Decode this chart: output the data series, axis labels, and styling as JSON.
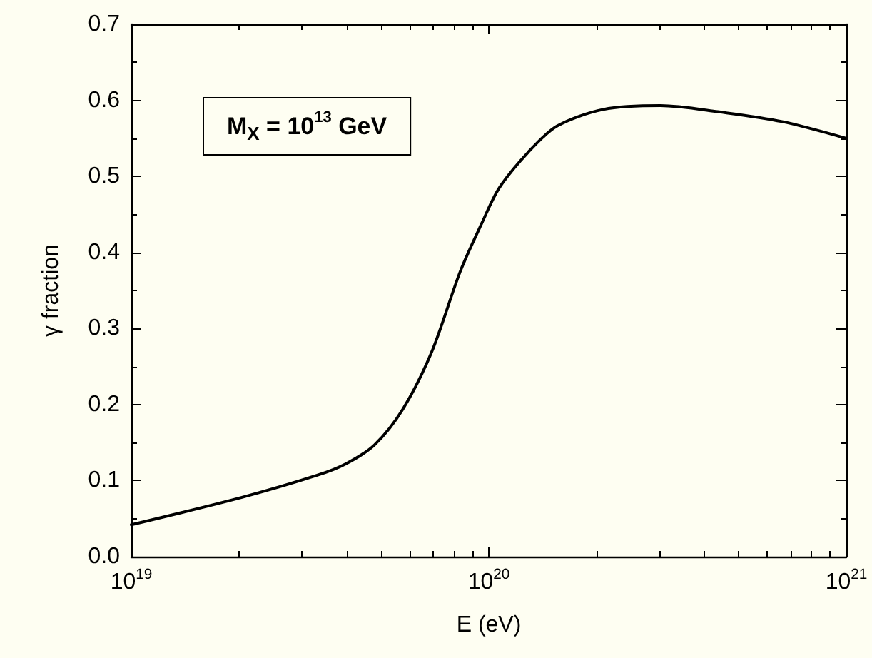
{
  "chart_data": {
    "type": "line",
    "xlabel": "E (eV)",
    "ylabel": "γ fraction",
    "annotations": [
      "M$_{X}$ = 10$^{13}$ GeV"
    ],
    "log": "x",
    "x": [
      1e+19,
      2.04e+19,
      3.31e+19,
      3.98e+19,
      4.79e+19,
      5.75e+19,
      6.92e+19,
      8.32e+19,
      9.55e+19,
      1.07e+20,
      1.29e+20,
      1.55e+20,
      2.09e+20,
      3.02e+20,
      4.37e+20,
      6.61e+20,
      1e+21
    ],
    "series": [
      {
        "color": "#000000",
        "values": [
          0.042,
          0.078,
          0.107,
          0.122,
          0.147,
          0.194,
          0.269,
          0.375,
          0.438,
          0.485,
          0.532,
          0.566,
          0.588,
          0.593,
          0.585,
          0.572,
          0.55
        ]
      }
    ],
    "xlim": [
      1e+19,
      1e+21
    ],
    "xticks": [
      {
        "value": 1e+19,
        "label": "10$^{19}$"
      },
      {
        "value": 1e+20,
        "label": "10$^{20}$"
      },
      {
        "value": 1e+21,
        "label": "10$^{21}$"
      }
    ],
    "ylim": [
      0,
      0.7
    ],
    "yticks": [
      {
        "value": 0,
        "label": "0.0"
      },
      {
        "value": 0.1,
        "label": "0.1"
      },
      {
        "value": 0.2,
        "label": "0.2"
      },
      {
        "value": 0.3,
        "label": "0.3"
      },
      {
        "value": 0.4,
        "label": "0.4"
      },
      {
        "value": 0.5,
        "label": "0.5"
      },
      {
        "value": 0.6,
        "label": "0.6"
      },
      {
        "value": 0.7,
        "label": "0.7"
      }
    ],
    "grid": false,
    "marker": "none",
    "line_style": "solid"
  }
}
